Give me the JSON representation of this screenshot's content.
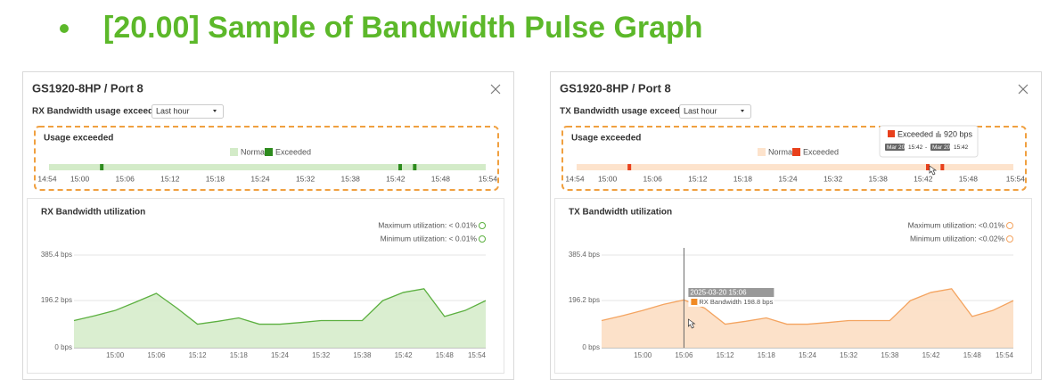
{
  "title": "[20.00] Sample of Bandwidth Pulse Graph",
  "panels": [
    {
      "header": "GS1920-8HP / Port 8",
      "filter_label": "RX Bandwidth usage exceeded",
      "dropdown": "Last hour",
      "usage": {
        "title": "Usage exceeded",
        "legend": [
          "Normal",
          "Exceeded"
        ],
        "normal_color": "#d3ebc8",
        "exceeded_color": "#2e8b1e",
        "xticks": [
          "14:54",
          "15:00",
          "15:06",
          "15:12",
          "15:18",
          "15:24",
          "15:32",
          "15:38",
          "15:42",
          "15:48",
          "15:54"
        ],
        "exceeded_minutes": [
          7,
          48,
          50
        ]
      },
      "utilization": {
        "title": "RX Bandwidth utilization",
        "max": "Maximum utilization: < 0.01%",
        "min": "Minimum utilization: < 0.01%",
        "ylim": [
          0,
          385.4
        ],
        "yticks": [
          {
            "value": 385.4,
            "label": "385.4 bps"
          },
          {
            "value": 196.2,
            "label": "196.2 bps"
          },
          {
            "value": 0,
            "label": "0 bps"
          }
        ],
        "xticks": [
          "15:00",
          "15:06",
          "15:12",
          "15:18",
          "15:24",
          "15:32",
          "15:38",
          "15:42",
          "15:48",
          "15:54"
        ],
        "values": [
          113,
          133,
          155,
          190,
          226,
          165,
          98,
          110,
          124,
          98,
          98,
          105,
          113,
          113,
          113,
          196,
          230,
          245,
          130,
          155,
          196
        ],
        "fill": "#d3ebc8",
        "stroke": "#5cb040"
      }
    },
    {
      "header": "GS1920-8HP / Port 8",
      "filter_label": "TX Bandwidth usage exceeded",
      "dropdown": "Last hour",
      "usage": {
        "title": "Usage exceeded",
        "legend": [
          "Normal",
          "Exceeded"
        ],
        "normal_color": "#fde3cc",
        "exceeded_color": "#e8401c",
        "xticks": [
          "14:54",
          "15:00",
          "15:06",
          "15:12",
          "15:18",
          "15:24",
          "15:32",
          "15:38",
          "15:42",
          "15:48",
          "15:54"
        ],
        "exceeded_minutes": [
          7,
          48,
          50
        ],
        "tooltip": {
          "label": "Exceeded",
          "value": "920 bps",
          "start_date": "Mar 20",
          "start_time": "15:42",
          "separator": "-",
          "end_date": "Mar 20",
          "end_time": "15:42"
        }
      },
      "utilization": {
        "title": "TX Bandwidth utilization",
        "max": "Maximum utilization: <0.01%",
        "min": "Minimum utilization: <0.02%",
        "ylim": [
          0,
          385.4
        ],
        "yticks": [
          {
            "value": 385.4,
            "label": "385.4 bps"
          },
          {
            "value": 196.2,
            "label": "196.2 bps"
          },
          {
            "value": 0,
            "label": "0 bps"
          }
        ],
        "xticks": [
          "15:00",
          "15:06",
          "15:12",
          "15:18",
          "15:24",
          "15:32",
          "15:38",
          "15:42",
          "15:48",
          "15:54"
        ],
        "values": [
          113,
          133,
          155,
          180,
          198.8,
          165,
          98,
          110,
          124,
          98,
          98,
          105,
          113,
          113,
          113,
          196,
          230,
          245,
          130,
          155,
          196
        ],
        "fill": "#fcdcbf",
        "stroke": "#f4a460",
        "tooltip": {
          "time": "2025-03-20 15:06",
          "series": "RX Bandwidth",
          "value": "198.8 bps",
          "color": "#f08a24"
        }
      }
    }
  ]
}
